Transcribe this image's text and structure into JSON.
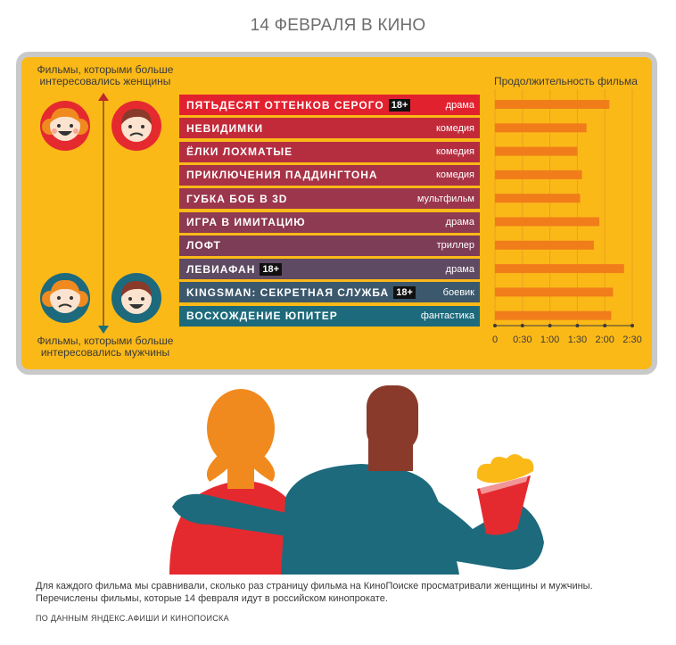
{
  "title": "14 ФЕВРАЛЯ В КИНО",
  "top_caption": [
    "Фильмы, которыми больше",
    "интересовались женщины"
  ],
  "bottom_caption": [
    "Фильмы, которыми больше",
    "интересовались мужчины"
  ],
  "duration_title": "Продолжительность фильма",
  "films": [
    {
      "name": "ПЯТЬДЕСЯТ ОТТЕНКОВ СЕРОГО",
      "badge": "18+",
      "genre": "драма",
      "color": "#e2212f"
    },
    {
      "name": "НЕВИДИМКИ",
      "badge": "",
      "genre": "комедия",
      "color": "#c22a39"
    },
    {
      "name": "ЁЛКИ ЛОХМАТЫЕ",
      "badge": "",
      "genre": "комедия",
      "color": "#b42e40"
    },
    {
      "name": "ПРИКЛЮЧЕНИЯ ПАДДИНГТОНА",
      "badge": "",
      "genre": "комедия",
      "color": "#a83246"
    },
    {
      "name": "ГУБКА БОБ В 3D",
      "badge": "",
      "genre": "мультфильм",
      "color": "#9b364c"
    },
    {
      "name": "ИГРА В ИМИТАЦИЮ",
      "badge": "",
      "genre": "драма",
      "color": "#8d3a52"
    },
    {
      "name": "ЛОФТ",
      "badge": "",
      "genre": "триллер",
      "color": "#7e3d56"
    },
    {
      "name": "ЛЕВИАФАН",
      "badge": "18+",
      "genre": "драма",
      "color": "#5e4a63"
    },
    {
      "name": "KINGSMAN: СЕКРЕТНАЯ СЛУЖБА",
      "badge": "18+",
      "genre": "боевик",
      "color": "#3c586c"
    },
    {
      "name": "ВОСХОЖДЕНИЕ ЮПИТЕР",
      "badge": "",
      "genre": "фантастика",
      "color": "#1d6a7c"
    }
  ],
  "chart_data": {
    "type": "bar",
    "orientation": "horizontal",
    "title": "Продолжительность фильма",
    "categories": [
      "ПЯТЬДЕСЯТ ОТТЕНКОВ СЕРОГО",
      "НЕВИДИМКИ",
      "ЁЛКИ ЛОХМАТЫЕ",
      "ПРИКЛЮЧЕНИЯ ПАДДИНГТОНА",
      "ГУБКА БОБ В 3D",
      "ИГРА В ИМИТАЦИЮ",
      "ЛОФТ",
      "ЛЕВИАФАН",
      "KINGSMAN: СЕКРЕТНАЯ СЛУЖБА",
      "ВОСХОЖДЕНИЕ ЮПИТЕР"
    ],
    "values": [
      125,
      100,
      90,
      95,
      93,
      114,
      108,
      141,
      129,
      127
    ],
    "value_unit": "minutes",
    "xlim": [
      0,
      150
    ],
    "ticks": [
      0,
      30,
      60,
      90,
      120,
      150
    ],
    "tick_labels": [
      "0",
      "0:30",
      "1:00",
      "1:30",
      "2:00",
      "2:30"
    ],
    "bar_color": "#f07d1a",
    "grid": true
  },
  "footer": [
    "Для каждого фильма мы сравнивали, сколько раз страницу фильма на КиноПоиске просматривали женщины и мужчины.",
    "Перечислены фильмы, которые 14 февраля идут в российском кинопрокате."
  ],
  "source": "ПО ДАННЫМ ЯНДЕКС.АФИШИ И КИНОПОИСКА",
  "colors": {
    "board": "#fbb918",
    "frame": "#c9c9c9",
    "female_hair": "#f08a1e",
    "male_hair": "#8a3a2a",
    "female_face_bg": "#e52a2f",
    "male_face_bg": "#1d6a7c"
  }
}
